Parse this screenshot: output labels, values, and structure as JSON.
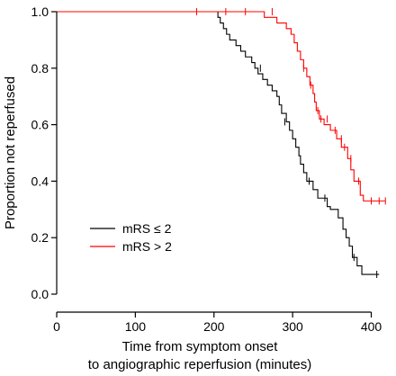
{
  "chart_data": {
    "type": "line",
    "title": "",
    "xlabel_lines": [
      "Time from symptom onset",
      "to angiographic reperfusion (minutes)"
    ],
    "ylabel": "Proportion not reperfused",
    "xlim": [
      0,
      420
    ],
    "ylim": [
      0,
      1.0
    ],
    "x_ticks": [
      0,
      100,
      200,
      300,
      400
    ],
    "x_tick_labels": [
      "0",
      "100",
      "200",
      "300",
      "400"
    ],
    "y_ticks": [
      0,
      0.2,
      0.4,
      0.6,
      0.8,
      1.0
    ],
    "y_tick_labels": [
      "0.0",
      "0.2",
      "0.4",
      "0.6",
      "0.8",
      "1.0"
    ],
    "grid": false,
    "legend_position": "bottom-left",
    "step": true,
    "series": [
      {
        "name": "mRS ≤ 2",
        "color": "#000000",
        "points": [
          [
            0,
            1.0
          ],
          [
            205,
            1.0
          ],
          [
            205,
            0.98
          ],
          [
            208,
            0.98
          ],
          [
            208,
            0.96
          ],
          [
            212,
            0.96
          ],
          [
            212,
            0.94
          ],
          [
            216,
            0.94
          ],
          [
            216,
            0.92
          ],
          [
            220,
            0.92
          ],
          [
            220,
            0.9
          ],
          [
            228,
            0.9
          ],
          [
            228,
            0.88
          ],
          [
            234,
            0.88
          ],
          [
            234,
            0.86
          ],
          [
            240,
            0.86
          ],
          [
            240,
            0.84
          ],
          [
            248,
            0.84
          ],
          [
            248,
            0.82
          ],
          [
            252,
            0.82
          ],
          [
            252,
            0.8
          ],
          [
            256,
            0.8
          ],
          [
            256,
            0.78
          ],
          [
            262,
            0.78
          ],
          [
            262,
            0.76
          ],
          [
            268,
            0.76
          ],
          [
            268,
            0.74
          ],
          [
            274,
            0.74
          ],
          [
            274,
            0.72
          ],
          [
            280,
            0.72
          ],
          [
            280,
            0.7
          ],
          [
            283,
            0.7
          ],
          [
            283,
            0.67
          ],
          [
            286,
            0.67
          ],
          [
            286,
            0.64
          ],
          [
            292,
            0.64
          ],
          [
            292,
            0.61
          ],
          [
            296,
            0.61
          ],
          [
            296,
            0.58
          ],
          [
            300,
            0.58
          ],
          [
            300,
            0.55
          ],
          [
            304,
            0.55
          ],
          [
            304,
            0.52
          ],
          [
            308,
            0.52
          ],
          [
            308,
            0.49
          ],
          [
            310,
            0.49
          ],
          [
            310,
            0.46
          ],
          [
            314,
            0.46
          ],
          [
            314,
            0.43
          ],
          [
            318,
            0.43
          ],
          [
            318,
            0.4
          ],
          [
            326,
            0.4
          ],
          [
            326,
            0.37
          ],
          [
            332,
            0.37
          ],
          [
            332,
            0.34
          ],
          [
            344,
            0.34
          ],
          [
            344,
            0.31
          ],
          [
            348,
            0.31
          ],
          [
            348,
            0.3
          ],
          [
            358,
            0.3
          ],
          [
            358,
            0.27
          ],
          [
            364,
            0.27
          ],
          [
            364,
            0.23
          ],
          [
            368,
            0.23
          ],
          [
            368,
            0.2
          ],
          [
            372,
            0.2
          ],
          [
            372,
            0.17
          ],
          [
            376,
            0.17
          ],
          [
            376,
            0.13
          ],
          [
            382,
            0.13
          ],
          [
            382,
            0.1
          ],
          [
            388,
            0.1
          ],
          [
            388,
            0.07
          ],
          [
            410,
            0.07
          ]
        ],
        "censor_marks": [
          [
            259,
            0.8
          ],
          [
            290,
            0.61
          ],
          [
            321,
            0.4
          ],
          [
            341,
            0.34
          ],
          [
            378,
            0.13
          ],
          [
            407,
            0.07
          ]
        ]
      },
      {
        "name": "mRS > 2",
        "color": "#ff0000",
        "points": [
          [
            0,
            1.0
          ],
          [
            264,
            1.0
          ],
          [
            264,
            0.98
          ],
          [
            280,
            0.98
          ],
          [
            280,
            0.96
          ],
          [
            292,
            0.96
          ],
          [
            292,
            0.94
          ],
          [
            298,
            0.94
          ],
          [
            298,
            0.92
          ],
          [
            302,
            0.92
          ],
          [
            302,
            0.89
          ],
          [
            306,
            0.89
          ],
          [
            306,
            0.86
          ],
          [
            310,
            0.86
          ],
          [
            310,
            0.83
          ],
          [
            314,
            0.83
          ],
          [
            314,
            0.8
          ],
          [
            318,
            0.8
          ],
          [
            318,
            0.77
          ],
          [
            322,
            0.77
          ],
          [
            322,
            0.74
          ],
          [
            326,
            0.74
          ],
          [
            326,
            0.71
          ],
          [
            328,
            0.71
          ],
          [
            328,
            0.68
          ],
          [
            330,
            0.68
          ],
          [
            330,
            0.65
          ],
          [
            334,
            0.65
          ],
          [
            334,
            0.62
          ],
          [
            340,
            0.62
          ],
          [
            340,
            0.6
          ],
          [
            348,
            0.6
          ],
          [
            348,
            0.58
          ],
          [
            356,
            0.58
          ],
          [
            356,
            0.55
          ],
          [
            362,
            0.55
          ],
          [
            362,
            0.52
          ],
          [
            370,
            0.52
          ],
          [
            370,
            0.48
          ],
          [
            374,
            0.48
          ],
          [
            374,
            0.44
          ],
          [
            378,
            0.44
          ],
          [
            378,
            0.4
          ],
          [
            386,
            0.4
          ],
          [
            386,
            0.35
          ],
          [
            390,
            0.35
          ],
          [
            390,
            0.33
          ],
          [
            418,
            0.33
          ]
        ],
        "censor_marks": [
          [
            178,
            1.0
          ],
          [
            215,
            1.0
          ],
          [
            240,
            1.0
          ],
          [
            274,
            1.0
          ],
          [
            314,
            0.8
          ],
          [
            323,
            0.74
          ],
          [
            332,
            0.65
          ],
          [
            336,
            0.62
          ],
          [
            344,
            0.62
          ],
          [
            354,
            0.58
          ],
          [
            362,
            0.55
          ],
          [
            366,
            0.52
          ],
          [
            374,
            0.48
          ],
          [
            384,
            0.4
          ],
          [
            400,
            0.33
          ],
          [
            410,
            0.33
          ],
          [
            418,
            0.33
          ]
        ]
      }
    ]
  }
}
